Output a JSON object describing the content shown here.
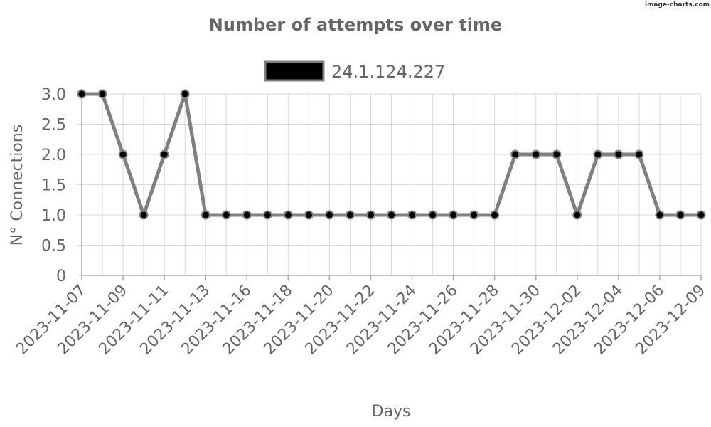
{
  "watermark": "image-charts.com",
  "chart_data": {
    "type": "line",
    "title": "Number of attempts over time",
    "xlabel": "Days",
    "ylabel": "N° Connections",
    "ylim": [
      0,
      3
    ],
    "y_ticks": [
      "0",
      "0.5",
      "1.0",
      "1.5",
      "2.0",
      "2.5",
      "3.0"
    ],
    "y_tick_values": [
      0,
      0.5,
      1,
      1.5,
      2,
      2.5,
      3
    ],
    "grid": true,
    "legend_position": "top",
    "x_tick_labels": [
      "2023-11-07",
      "2023-11-09",
      "2023-11-11",
      "2023-11-13",
      "2023-11-16",
      "2023-11-18",
      "2023-11-20",
      "2023-11-22",
      "2023-11-24",
      "2023-11-26",
      "2023-11-28",
      "2023-11-30",
      "2023-12-02",
      "2023-12-04",
      "2023-12-06",
      "2023-12-09"
    ],
    "x_tick_positions": [
      0,
      2,
      4,
      6,
      8,
      10,
      12,
      14,
      16,
      18,
      20,
      22,
      24,
      26,
      28,
      30
    ],
    "series": [
      {
        "name": "24.1.124.227",
        "line_color": "#808080",
        "marker_color": "#000000",
        "values": [
          3,
          3,
          2,
          1,
          2,
          3,
          1,
          1,
          1,
          1,
          1,
          1,
          1,
          1,
          1,
          1,
          1,
          1,
          1,
          1,
          1,
          2,
          2,
          2,
          1,
          2,
          2,
          2,
          1,
          1,
          1
        ]
      }
    ]
  }
}
